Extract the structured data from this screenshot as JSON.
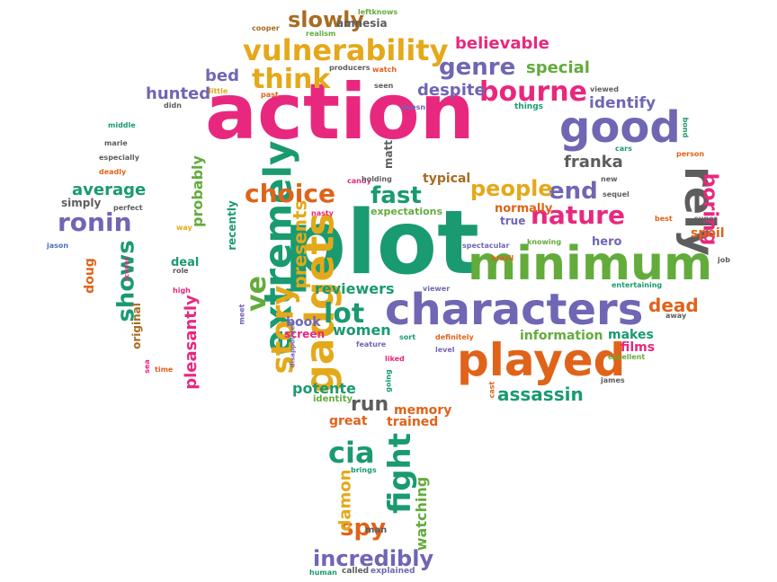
{
  "palette": {
    "pink": "#e8287e",
    "green": "#1a9a70",
    "purple": "#6f66b4",
    "orange": "#e0631a",
    "yellow": "#e4a91a",
    "gray": "#5d5d5d",
    "brown": "#a86c23",
    "lime": "#63ac3c",
    "blue": "#4b73b6"
  },
  "words": [
    {
      "text": "action",
      "color": "pink",
      "rotate": 0
    },
    {
      "text": "plot",
      "color": "green",
      "rotate": 0
    },
    {
      "text": "minimum",
      "color": "lime",
      "rotate": 0
    },
    {
      "text": "characters",
      "color": "purple",
      "rotate": 0
    },
    {
      "text": "played",
      "color": "orange",
      "rotate": 0
    },
    {
      "text": "gadgets",
      "color": "yellow",
      "rotate": -90
    },
    {
      "text": "extremely",
      "color": "green",
      "rotate": -90
    },
    {
      "text": "good",
      "color": "purple",
      "rotate": 0
    },
    {
      "text": "rely",
      "color": "gray",
      "rotate": 90
    },
    {
      "text": "vulnerability",
      "color": "yellow",
      "rotate": 0
    },
    {
      "text": "bourne",
      "color": "pink",
      "rotate": 0
    },
    {
      "text": "think",
      "color": "yellow",
      "rotate": 0
    },
    {
      "text": "genre",
      "color": "purple",
      "rotate": 0
    },
    {
      "text": "slowly",
      "color": "brown",
      "rotate": 0
    },
    {
      "text": "believable",
      "color": "pink",
      "rotate": 0
    },
    {
      "text": "special",
      "color": "lime",
      "rotate": 0
    },
    {
      "text": "despite",
      "color": "purple",
      "rotate": 0
    },
    {
      "text": "identify",
      "color": "purple",
      "rotate": 0
    },
    {
      "text": "choice",
      "color": "orange",
      "rotate": 0
    },
    {
      "text": "fast",
      "color": "green",
      "rotate": 0
    },
    {
      "text": "nature",
      "color": "pink",
      "rotate": 0
    },
    {
      "text": "end",
      "color": "purple",
      "rotate": 0
    },
    {
      "text": "people",
      "color": "yellow",
      "rotate": 0
    },
    {
      "text": "franka",
      "color": "gray",
      "rotate": 0
    },
    {
      "text": "boring",
      "color": "pink",
      "rotate": 90
    },
    {
      "text": "story",
      "color": "yellow",
      "rotate": -90
    },
    {
      "text": "ve",
      "color": "lime",
      "rotate": -90
    },
    {
      "text": "presents",
      "color": "yellow",
      "rotate": -90
    },
    {
      "text": "ronin",
      "color": "purple",
      "rotate": 0
    },
    {
      "text": "average",
      "color": "green",
      "rotate": 0
    },
    {
      "text": "shows",
      "color": "green",
      "rotate": -90
    },
    {
      "text": "lot",
      "color": "green",
      "rotate": 0
    },
    {
      "text": "reviewers",
      "color": "green",
      "rotate": 0
    },
    {
      "text": "dead",
      "color": "orange",
      "rotate": 0
    },
    {
      "text": "assassin",
      "color": "green",
      "rotate": 0
    },
    {
      "text": "cia",
      "color": "green",
      "rotate": 0
    },
    {
      "text": "fight",
      "color": "green",
      "rotate": -90
    },
    {
      "text": "spy",
      "color": "orange",
      "rotate": 0
    },
    {
      "text": "incredibly",
      "color": "purple",
      "rotate": 0
    },
    {
      "text": "run",
      "color": "gray",
      "rotate": 0
    },
    {
      "text": "potente",
      "color": "green",
      "rotate": 0
    },
    {
      "text": "memory",
      "color": "orange",
      "rotate": 0
    },
    {
      "text": "great",
      "color": "orange",
      "rotate": 0
    },
    {
      "text": "trained",
      "color": "orange",
      "rotate": 0
    },
    {
      "text": "damon",
      "color": "yellow",
      "rotate": -90
    },
    {
      "text": "watching",
      "color": "lime",
      "rotate": -90
    },
    {
      "text": "pleasantly",
      "color": "pink",
      "rotate": -90
    },
    {
      "text": "probably",
      "color": "lime",
      "rotate": -90
    },
    {
      "text": "hunted",
      "color": "purple",
      "rotate": 0
    },
    {
      "text": "bed",
      "color": "purple",
      "rotate": 0
    },
    {
      "text": "information",
      "color": "lime",
      "rotate": 0
    },
    {
      "text": "makes",
      "color": "green",
      "rotate": 0
    },
    {
      "text": "films",
      "color": "pink",
      "rotate": 0
    },
    {
      "text": "women",
      "color": "green",
      "rotate": 0
    },
    {
      "text": "book",
      "color": "purple",
      "rotate": 0
    },
    {
      "text": "screen",
      "color": "pink",
      "rotate": 0
    },
    {
      "text": "spoil",
      "color": "orange",
      "rotate": 0
    },
    {
      "text": "hero",
      "color": "purple",
      "rotate": 0
    },
    {
      "text": "normally",
      "color": "orange",
      "rotate": 0
    },
    {
      "text": "true",
      "color": "purple",
      "rotate": 0
    },
    {
      "text": "typical",
      "color": "brown",
      "rotate": 0
    },
    {
      "text": "matt",
      "color": "gray",
      "rotate": -90
    },
    {
      "text": "doug",
      "color": "orange",
      "rotate": -90
    },
    {
      "text": "simply",
      "color": "gray",
      "rotate": 0
    },
    {
      "text": "original",
      "color": "brown",
      "rotate": -90
    },
    {
      "text": "deal",
      "color": "green",
      "rotate": 0
    },
    {
      "text": "recently",
      "color": "green",
      "rotate": -90
    },
    {
      "text": "expectations",
      "color": "lime",
      "rotate": 0
    },
    {
      "text": "amnesia",
      "color": "gray",
      "rotate": 0
    },
    {
      "text": "identity",
      "color": "lime",
      "rotate": 0
    },
    {
      "text": "man",
      "color": "gray",
      "rotate": 0
    },
    {
      "text": "called",
      "color": "gray",
      "rotate": 0
    },
    {
      "text": "explained",
      "color": "purple",
      "rotate": 0
    },
    {
      "text": "human",
      "color": "green",
      "rotate": 0
    },
    {
      "text": "brings",
      "color": "green",
      "rotate": 0
    },
    {
      "text": "cooper",
      "color": "brown",
      "rotate": 0
    },
    {
      "text": "leftknows",
      "color": "lime",
      "rotate": 0
    },
    {
      "text": "realism",
      "color": "lime",
      "rotate": 0
    },
    {
      "text": "producers",
      "color": "gray",
      "rotate": 0
    },
    {
      "text": "watch",
      "color": "orange",
      "rotate": 0
    },
    {
      "text": "seen",
      "color": "gray",
      "rotate": 0
    },
    {
      "text": "doesn",
      "color": "purple",
      "rotate": 0
    },
    {
      "text": "things",
      "color": "green",
      "rotate": 0
    },
    {
      "text": "viewed",
      "color": "gray",
      "rotate": 0
    },
    {
      "text": "new",
      "color": "gray",
      "rotate": 0
    },
    {
      "text": "cars",
      "color": "green",
      "rotate": 0
    },
    {
      "text": "bond",
      "color": "green",
      "rotate": 90
    },
    {
      "text": "person",
      "color": "orange",
      "rotate": 0
    },
    {
      "text": "sequel",
      "color": "gray",
      "rotate": 0
    },
    {
      "text": "best",
      "color": "orange",
      "rotate": 0
    },
    {
      "text": "super",
      "color": "gray",
      "rotate": 0
    },
    {
      "text": "job",
      "color": "gray",
      "rotate": 0
    },
    {
      "text": "little",
      "color": "yellow",
      "rotate": 0
    },
    {
      "text": "past",
      "color": "orange",
      "rotate": 0
    },
    {
      "text": "didn",
      "color": "gray",
      "rotate": 0
    },
    {
      "text": "middle",
      "color": "green",
      "rotate": 0
    },
    {
      "text": "marie",
      "color": "gray",
      "rotate": 0
    },
    {
      "text": "especially",
      "color": "gray",
      "rotate": 0
    },
    {
      "text": "deadly",
      "color": "orange",
      "rotate": 0
    },
    {
      "text": "perfect",
      "color": "gray",
      "rotate": 0
    },
    {
      "text": "way",
      "color": "yellow",
      "rotate": 0
    },
    {
      "text": "nasty",
      "color": "pink",
      "rotate": 0
    },
    {
      "text": "candy",
      "color": "pink",
      "rotate": 0
    },
    {
      "text": "holding",
      "color": "gray",
      "rotate": 0
    },
    {
      "text": "spectacular",
      "color": "purple",
      "rotate": 0
    },
    {
      "text": "knowing",
      "color": "lime",
      "rotate": 0
    },
    {
      "text": "brazil",
      "color": "orange",
      "rotate": 0
    },
    {
      "text": "viewer",
      "color": "purple",
      "rotate": 0
    },
    {
      "text": "entertaining",
      "color": "green",
      "rotate": 0
    },
    {
      "text": "away",
      "color": "gray",
      "rotate": 0
    },
    {
      "text": "excellent",
      "color": "lime",
      "rotate": 0
    },
    {
      "text": "james",
      "color": "gray",
      "rotate": 0
    },
    {
      "text": "cast",
      "color": "orange",
      "rotate": -90
    },
    {
      "text": "level",
      "color": "purple",
      "rotate": 0
    },
    {
      "text": "definitely",
      "color": "orange",
      "rotate": 0
    },
    {
      "text": "sort",
      "color": "green",
      "rotate": 0
    },
    {
      "text": "feature",
      "color": "purple",
      "rotate": 0
    },
    {
      "text": "liked",
      "color": "pink",
      "rotate": 0
    },
    {
      "text": "going",
      "color": "green",
      "rotate": -90
    },
    {
      "text": "disappointed",
      "color": "purple",
      "rotate": -90
    },
    {
      "text": "meet",
      "color": "purple",
      "rotate": -90
    },
    {
      "text": "time",
      "color": "orange",
      "rotate": 0
    },
    {
      "text": "sea",
      "color": "pink",
      "rotate": -90
    },
    {
      "text": "high",
      "color": "pink",
      "rotate": 0
    },
    {
      "text": "role",
      "color": "gray",
      "rotate": 0
    },
    {
      "text": "scenes",
      "color": "pink",
      "rotate": -90
    },
    {
      "text": "jason",
      "color": "blue",
      "rotate": 0
    }
  ]
}
